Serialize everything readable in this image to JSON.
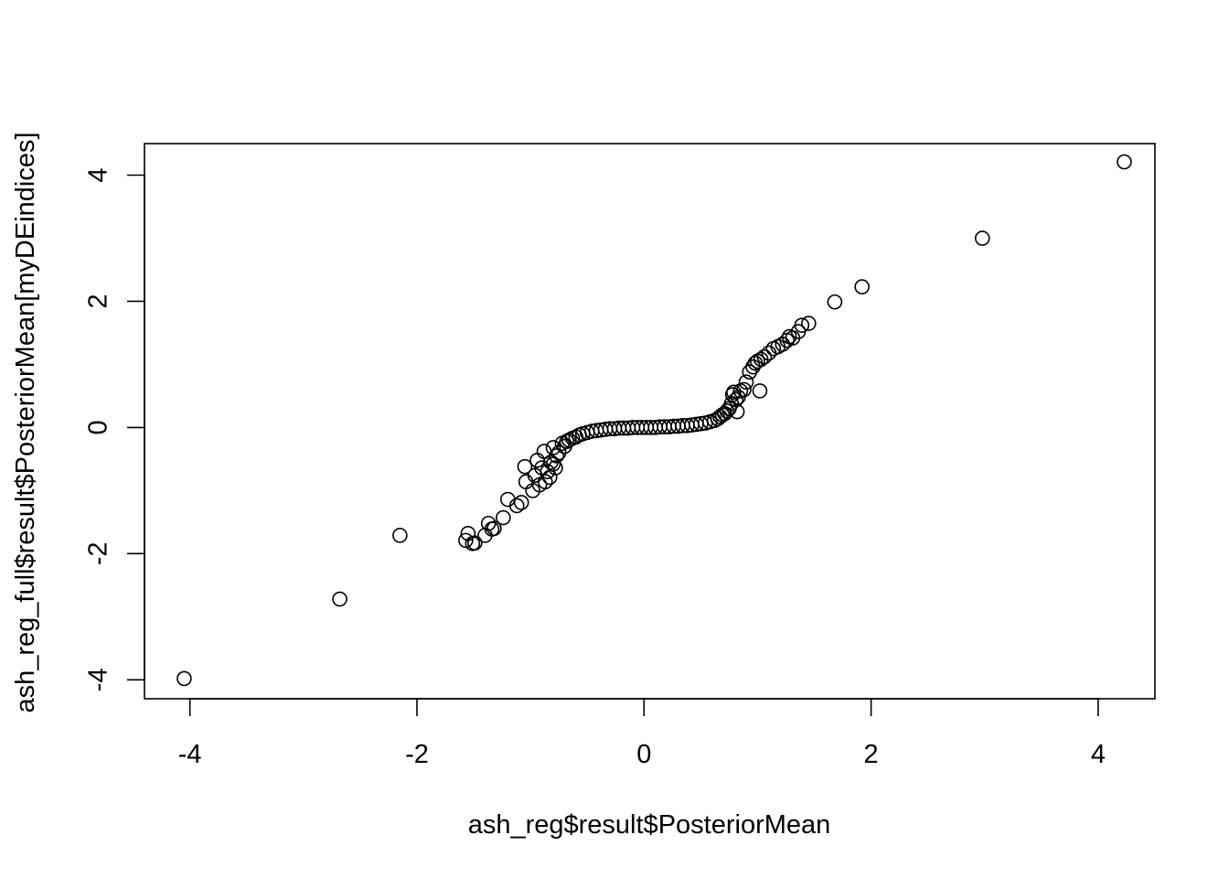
{
  "chart_data": {
    "type": "scatter",
    "title": "",
    "xlabel": "ash_reg$result$PosteriorMean",
    "ylabel": "ash_reg_full$result$PosteriorMean[myDEindices]",
    "xlim": [
      -4.4,
      4.5
    ],
    "ylim": [
      -4.3,
      4.5
    ],
    "xticks": [
      -4,
      -2,
      0,
      2,
      4
    ],
    "yticks": [
      -4,
      -2,
      0,
      2,
      4
    ],
    "xtick_labels": [
      "-4",
      "-2",
      "0",
      "2",
      "4"
    ],
    "ytick_labels": [
      "-4",
      "-2",
      "0",
      "2",
      "4"
    ],
    "grid": false,
    "legend": "none",
    "marker": "open-circle",
    "series": [
      {
        "points": [
          [
            -4.05,
            -3.98
          ],
          [
            -2.68,
            -2.72
          ],
          [
            -2.15,
            -1.71
          ],
          [
            -1.57,
            -1.79
          ],
          [
            -1.55,
            -1.68
          ],
          [
            -1.51,
            -1.84
          ],
          [
            -1.49,
            -1.83
          ],
          [
            -1.4,
            -1.71
          ],
          [
            -1.37,
            -1.52
          ],
          [
            -1.34,
            -1.61
          ],
          [
            -1.32,
            -1.6
          ],
          [
            -1.24,
            -1.43
          ],
          [
            -1.2,
            -1.14
          ],
          [
            -1.12,
            -1.24
          ],
          [
            -1.08,
            -1.19
          ],
          [
            -1.05,
            -0.62
          ],
          [
            -1.04,
            -0.86
          ],
          [
            -0.98,
            -1.0
          ],
          [
            -0.96,
            -0.76
          ],
          [
            -0.94,
            -0.52
          ],
          [
            -0.92,
            -0.91
          ],
          [
            -0.9,
            -0.64
          ],
          [
            -0.88,
            -0.38
          ],
          [
            -0.87,
            -0.86
          ],
          [
            -0.85,
            -0.7
          ],
          [
            -0.83,
            -0.79
          ],
          [
            -0.82,
            -0.55
          ],
          [
            -0.8,
            -0.58
          ],
          [
            -0.78,
            -0.64
          ],
          [
            -0.77,
            -0.45
          ],
          [
            -0.75,
            -0.4
          ],
          [
            -0.8,
            -0.32
          ],
          [
            -0.72,
            -0.25
          ],
          [
            -0.7,
            -0.3
          ],
          [
            -0.68,
            -0.22
          ],
          [
            -0.66,
            -0.2
          ],
          [
            -0.63,
            -0.17
          ],
          [
            -0.6,
            -0.15
          ],
          [
            -0.57,
            -0.12
          ],
          [
            -0.54,
            -0.1
          ],
          [
            -0.5,
            -0.08
          ],
          [
            -0.46,
            -0.06
          ],
          [
            -0.42,
            -0.05
          ],
          [
            -0.38,
            -0.04
          ],
          [
            -0.34,
            -0.03
          ],
          [
            -0.3,
            -0.02
          ],
          [
            -0.26,
            -0.02
          ],
          [
            -0.22,
            -0.01
          ],
          [
            -0.18,
            -0.01
          ],
          [
            -0.14,
            -0.01
          ],
          [
            -0.1,
            0.0
          ],
          [
            -0.06,
            0.0
          ],
          [
            -0.02,
            0.0
          ],
          [
            0.02,
            0.0
          ],
          [
            0.06,
            0.0
          ],
          [
            0.1,
            0.0
          ],
          [
            0.14,
            0.01
          ],
          [
            0.18,
            0.01
          ],
          [
            0.22,
            0.01
          ],
          [
            0.26,
            0.02
          ],
          [
            0.3,
            0.02
          ],
          [
            0.34,
            0.03
          ],
          [
            0.38,
            0.03
          ],
          [
            0.42,
            0.04
          ],
          [
            0.46,
            0.05
          ],
          [
            0.5,
            0.06
          ],
          [
            0.54,
            0.07
          ],
          [
            0.58,
            0.09
          ],
          [
            0.62,
            0.11
          ],
          [
            0.65,
            0.14
          ],
          [
            0.67,
            0.17
          ],
          [
            0.69,
            0.2
          ],
          [
            0.71,
            0.22
          ],
          [
            0.73,
            0.26
          ],
          [
            0.75,
            0.3
          ],
          [
            0.77,
            0.38
          ],
          [
            0.78,
            0.52
          ],
          [
            0.79,
            0.56
          ],
          [
            0.81,
            0.44
          ],
          [
            0.82,
            0.25
          ],
          [
            0.83,
            0.48
          ],
          [
            0.85,
            0.58
          ],
          [
            0.88,
            0.6
          ],
          [
            0.9,
            0.72
          ],
          [
            0.93,
            0.88
          ],
          [
            0.96,
            0.96
          ],
          [
            0.98,
            1.02
          ],
          [
            1.0,
            1.05
          ],
          [
            1.02,
            0.58
          ],
          [
            1.03,
            1.08
          ],
          [
            1.06,
            1.12
          ],
          [
            1.1,
            1.18
          ],
          [
            1.14,
            1.25
          ],
          [
            1.18,
            1.28
          ],
          [
            1.22,
            1.32
          ],
          [
            1.26,
            1.38
          ],
          [
            1.28,
            1.44
          ],
          [
            1.31,
            1.42
          ],
          [
            1.36,
            1.52
          ],
          [
            1.39,
            1.62
          ],
          [
            1.45,
            1.65
          ],
          [
            1.68,
            1.99
          ],
          [
            1.92,
            2.23
          ],
          [
            2.98,
            3.0
          ],
          [
            4.23,
            4.21
          ]
        ]
      }
    ]
  }
}
